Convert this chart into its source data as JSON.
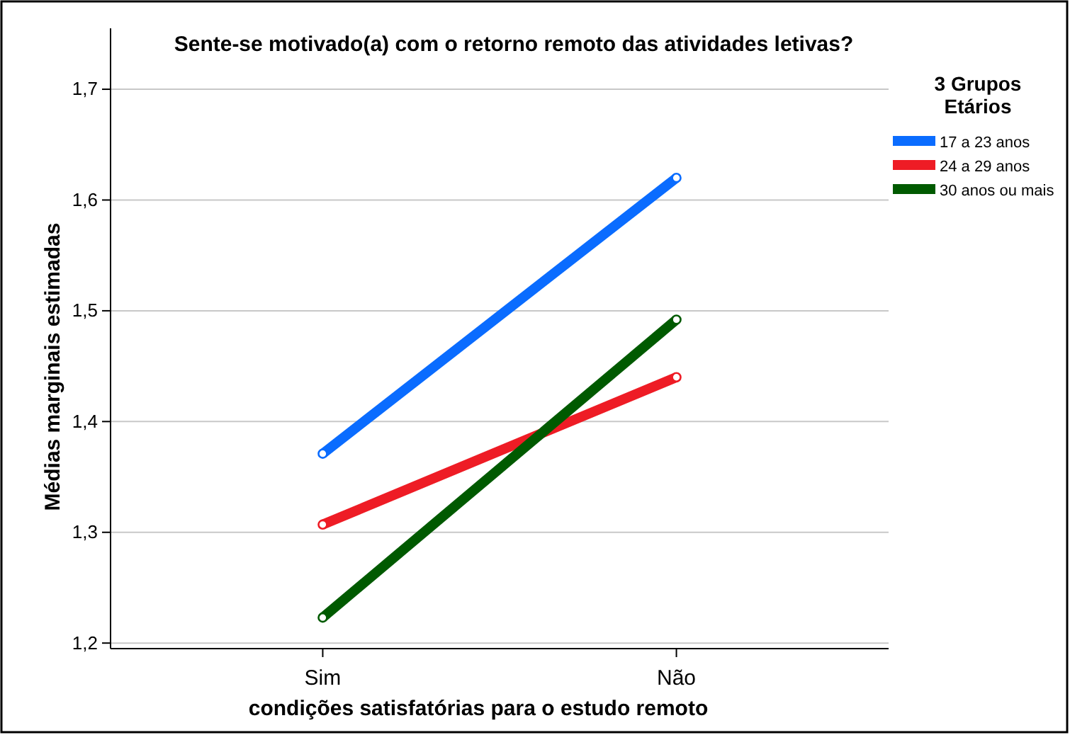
{
  "chart_data": {
    "type": "line",
    "title": "Sente-se motivado(a) com o retorno remoto das atividades letivas?",
    "xlabel": "condições  satisfatórias para o estudo remoto",
    "ylabel": "Médias marginais estimadas",
    "legend_title": "3 Grupos Etários",
    "categories": [
      "Sim",
      "Não"
    ],
    "series": [
      {
        "name": "17 a 23 anos",
        "color": "#0a6cff",
        "values": [
          1.371,
          1.62
        ]
      },
      {
        "name": "24 a 29 anos",
        "color": "#ee1c25",
        "values": [
          1.307,
          1.44
        ]
      },
      {
        "name": "30 anos ou mais",
        "color": "#005a00",
        "values": [
          1.223,
          1.492
        ]
      }
    ],
    "ylim": [
      1.195,
      1.755
    ],
    "yticks": [
      {
        "value": 1.2,
        "label": "1,2"
      },
      {
        "value": 1.3,
        "label": "1,3"
      },
      {
        "value": 1.4,
        "label": "1,4"
      },
      {
        "value": 1.5,
        "label": "1,5"
      },
      {
        "value": 1.6,
        "label": "1,6"
      },
      {
        "value": 1.7,
        "label": "1,7"
      }
    ],
    "grid": "y",
    "legend": "right",
    "marker": "circle",
    "line_style": "solid"
  }
}
